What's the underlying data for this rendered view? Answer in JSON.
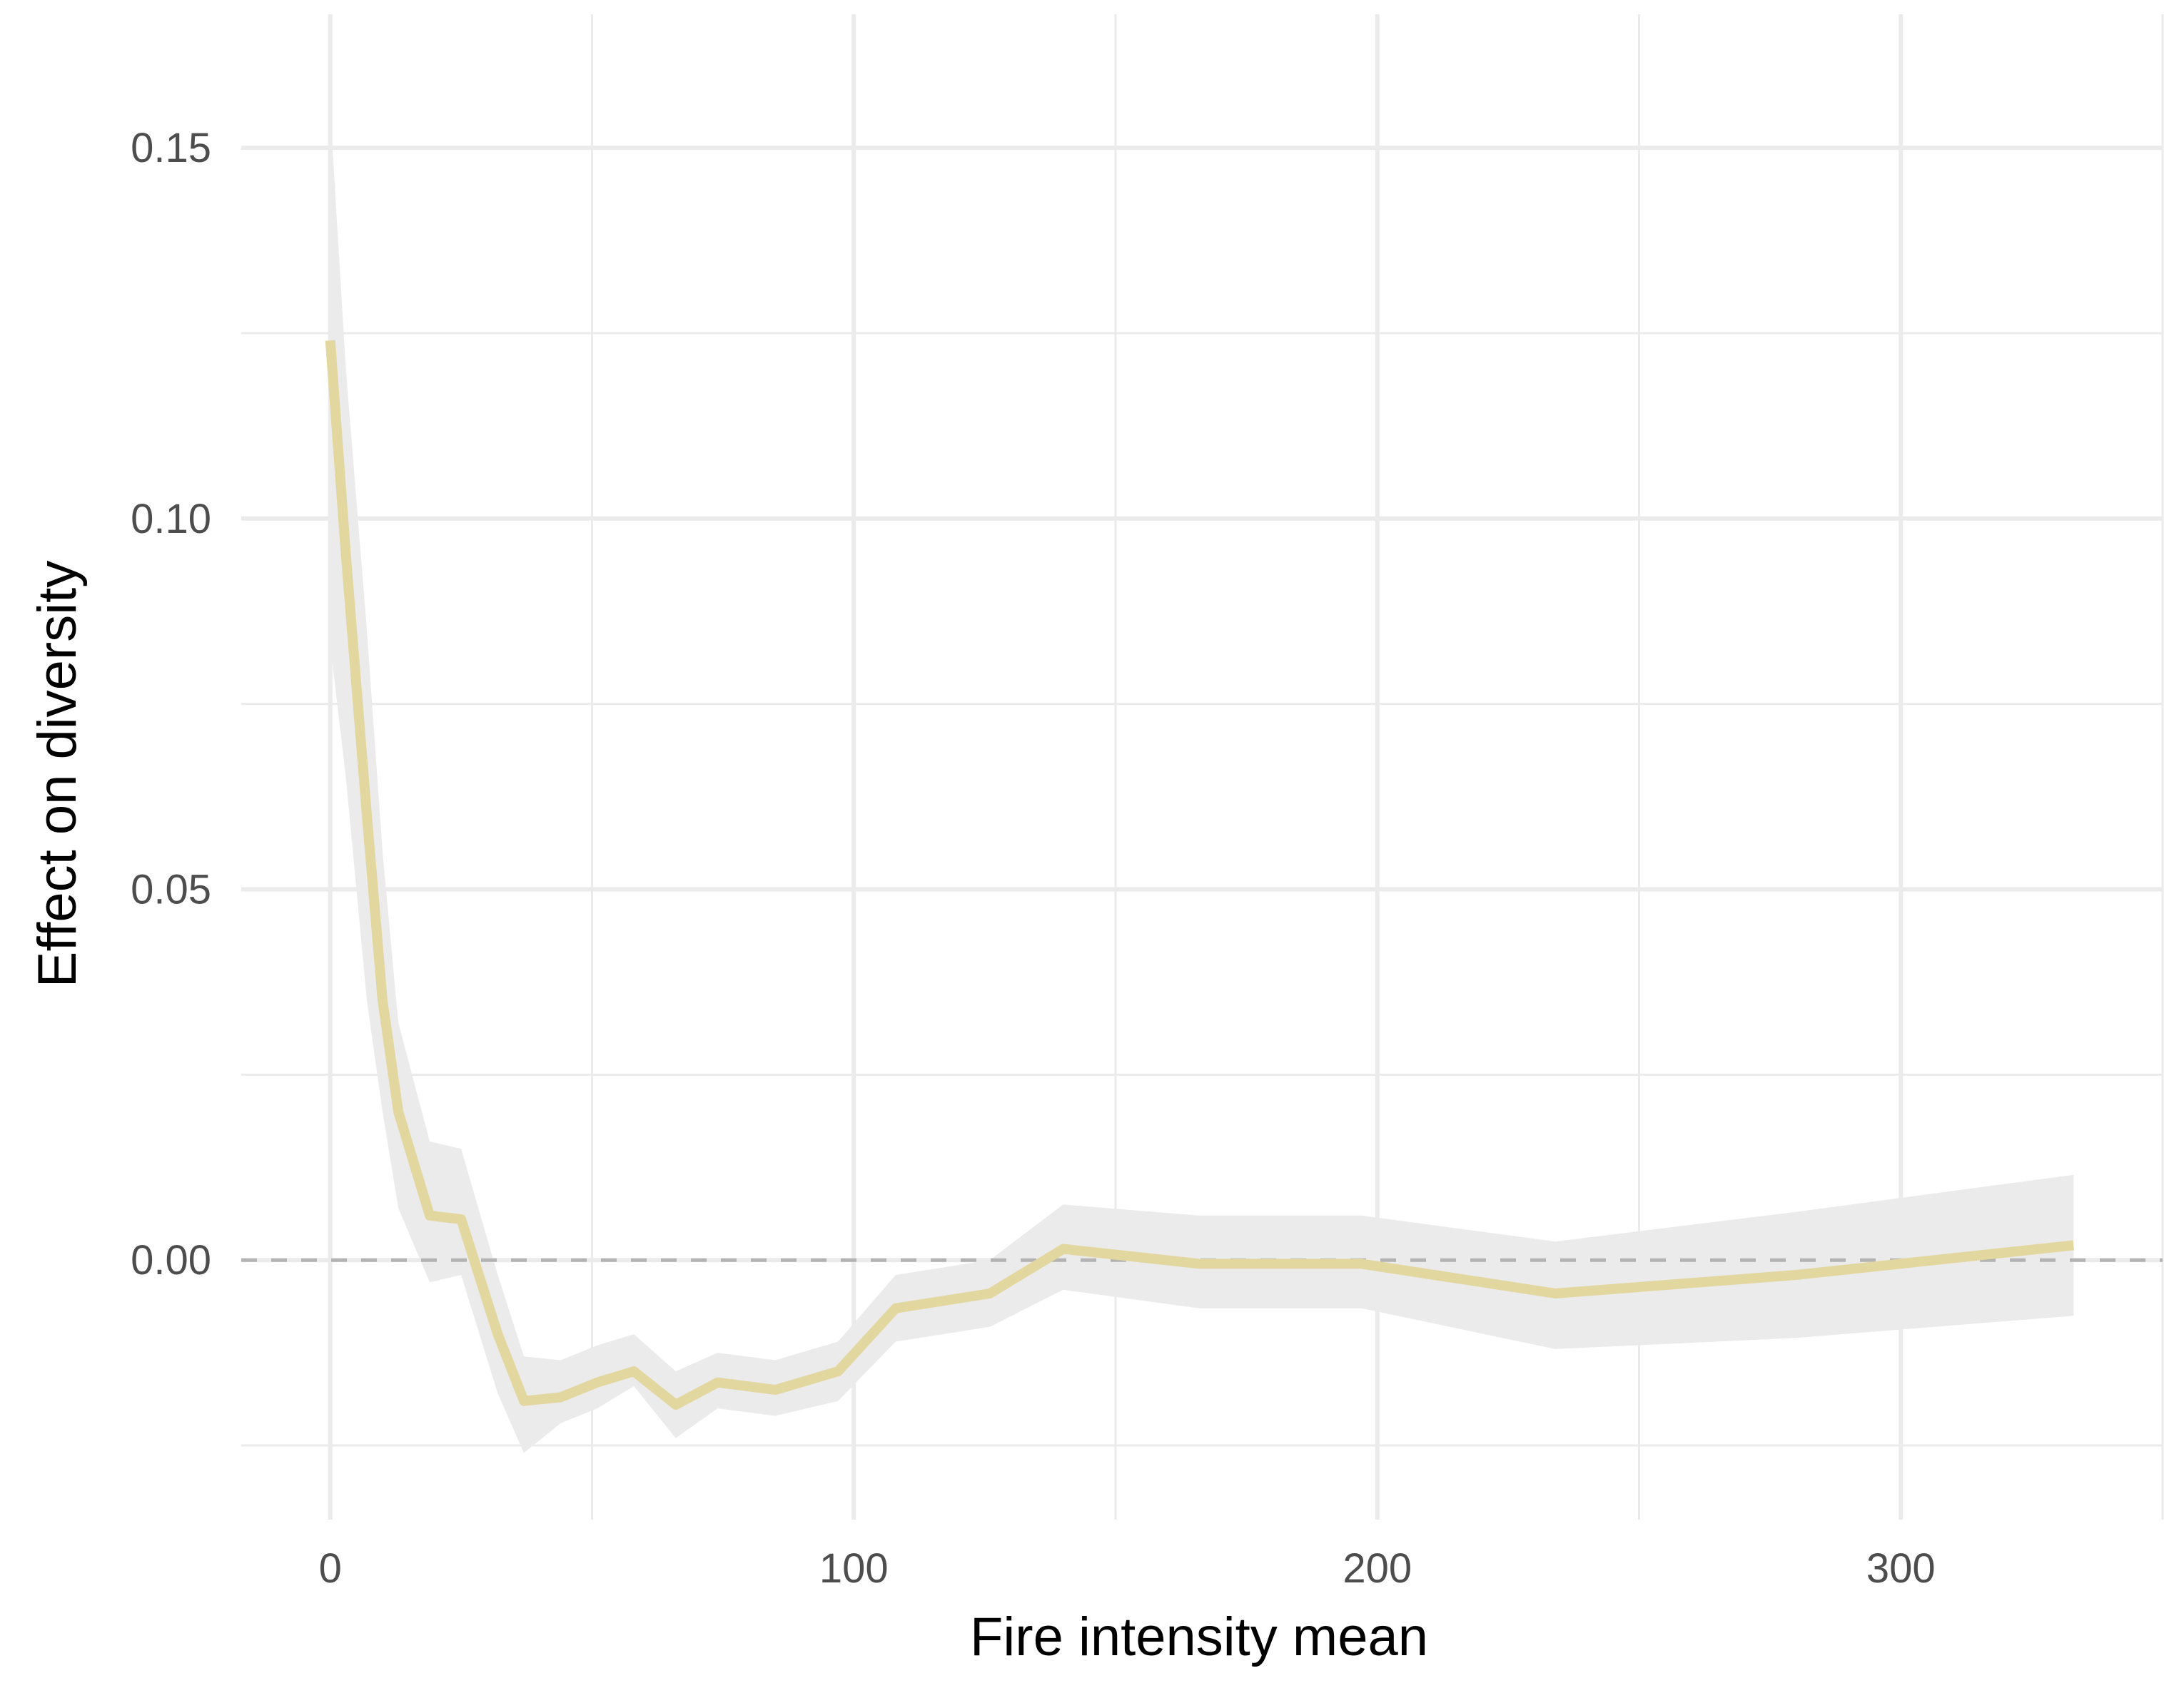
{
  "chart_data": {
    "type": "line",
    "title": "",
    "xlabel": "Fire intensity mean",
    "ylabel": "Effect on diversity",
    "xlim": [
      -17,
      350
    ],
    "ylim": [
      -0.035,
      0.168
    ],
    "x_ticks": [
      0,
      100,
      200,
      300
    ],
    "x_tick_labels": [
      "0",
      "100",
      "200",
      "300"
    ],
    "y_ticks": [
      0.0,
      0.05,
      0.1,
      0.15
    ],
    "y_tick_labels": [
      "0.00",
      "0.05",
      "0.10",
      "0.15"
    ],
    "grid": true,
    "reference_line": {
      "y": 0,
      "style": "dashed",
      "color": "#b3b3b3"
    },
    "line_color": "#e3d7a0",
    "ribbon_color": "#ebebeb",
    "series": [
      {
        "x": [
          0,
          3,
          7,
          10,
          13,
          19,
          25,
          32,
          37,
          44,
          51,
          58,
          66,
          74,
          85,
          97,
          108,
          126,
          140,
          166,
          197,
          234,
          280,
          333
        ],
        "y": [
          0.124,
          0.095,
          0.06,
          0.035,
          0.02,
          0.006,
          0.0055,
          -0.01,
          -0.019,
          -0.0185,
          -0.0165,
          -0.015,
          -0.0195,
          -0.0165,
          -0.0175,
          -0.015,
          -0.0065,
          -0.0045,
          0.0015,
          -0.0005,
          -0.0005,
          -0.0045,
          -0.002,
          0.002
        ],
        "lower": [
          0.083,
          0.065,
          0.035,
          0.02,
          0.007,
          -0.003,
          -0.002,
          -0.018,
          -0.026,
          -0.022,
          -0.02,
          -0.017,
          -0.024,
          -0.02,
          -0.021,
          -0.019,
          -0.011,
          -0.009,
          -0.004,
          -0.0065,
          -0.0065,
          -0.012,
          -0.0105,
          -0.0075
        ],
        "upper": [
          0.155,
          0.12,
          0.085,
          0.055,
          0.032,
          0.016,
          0.015,
          -0.002,
          -0.013,
          -0.0135,
          -0.0115,
          -0.01,
          -0.015,
          -0.0125,
          -0.0135,
          -0.011,
          -0.002,
          0.0,
          0.0075,
          0.006,
          0.006,
          0.0025,
          0.0065,
          0.0115
        ]
      }
    ]
  }
}
